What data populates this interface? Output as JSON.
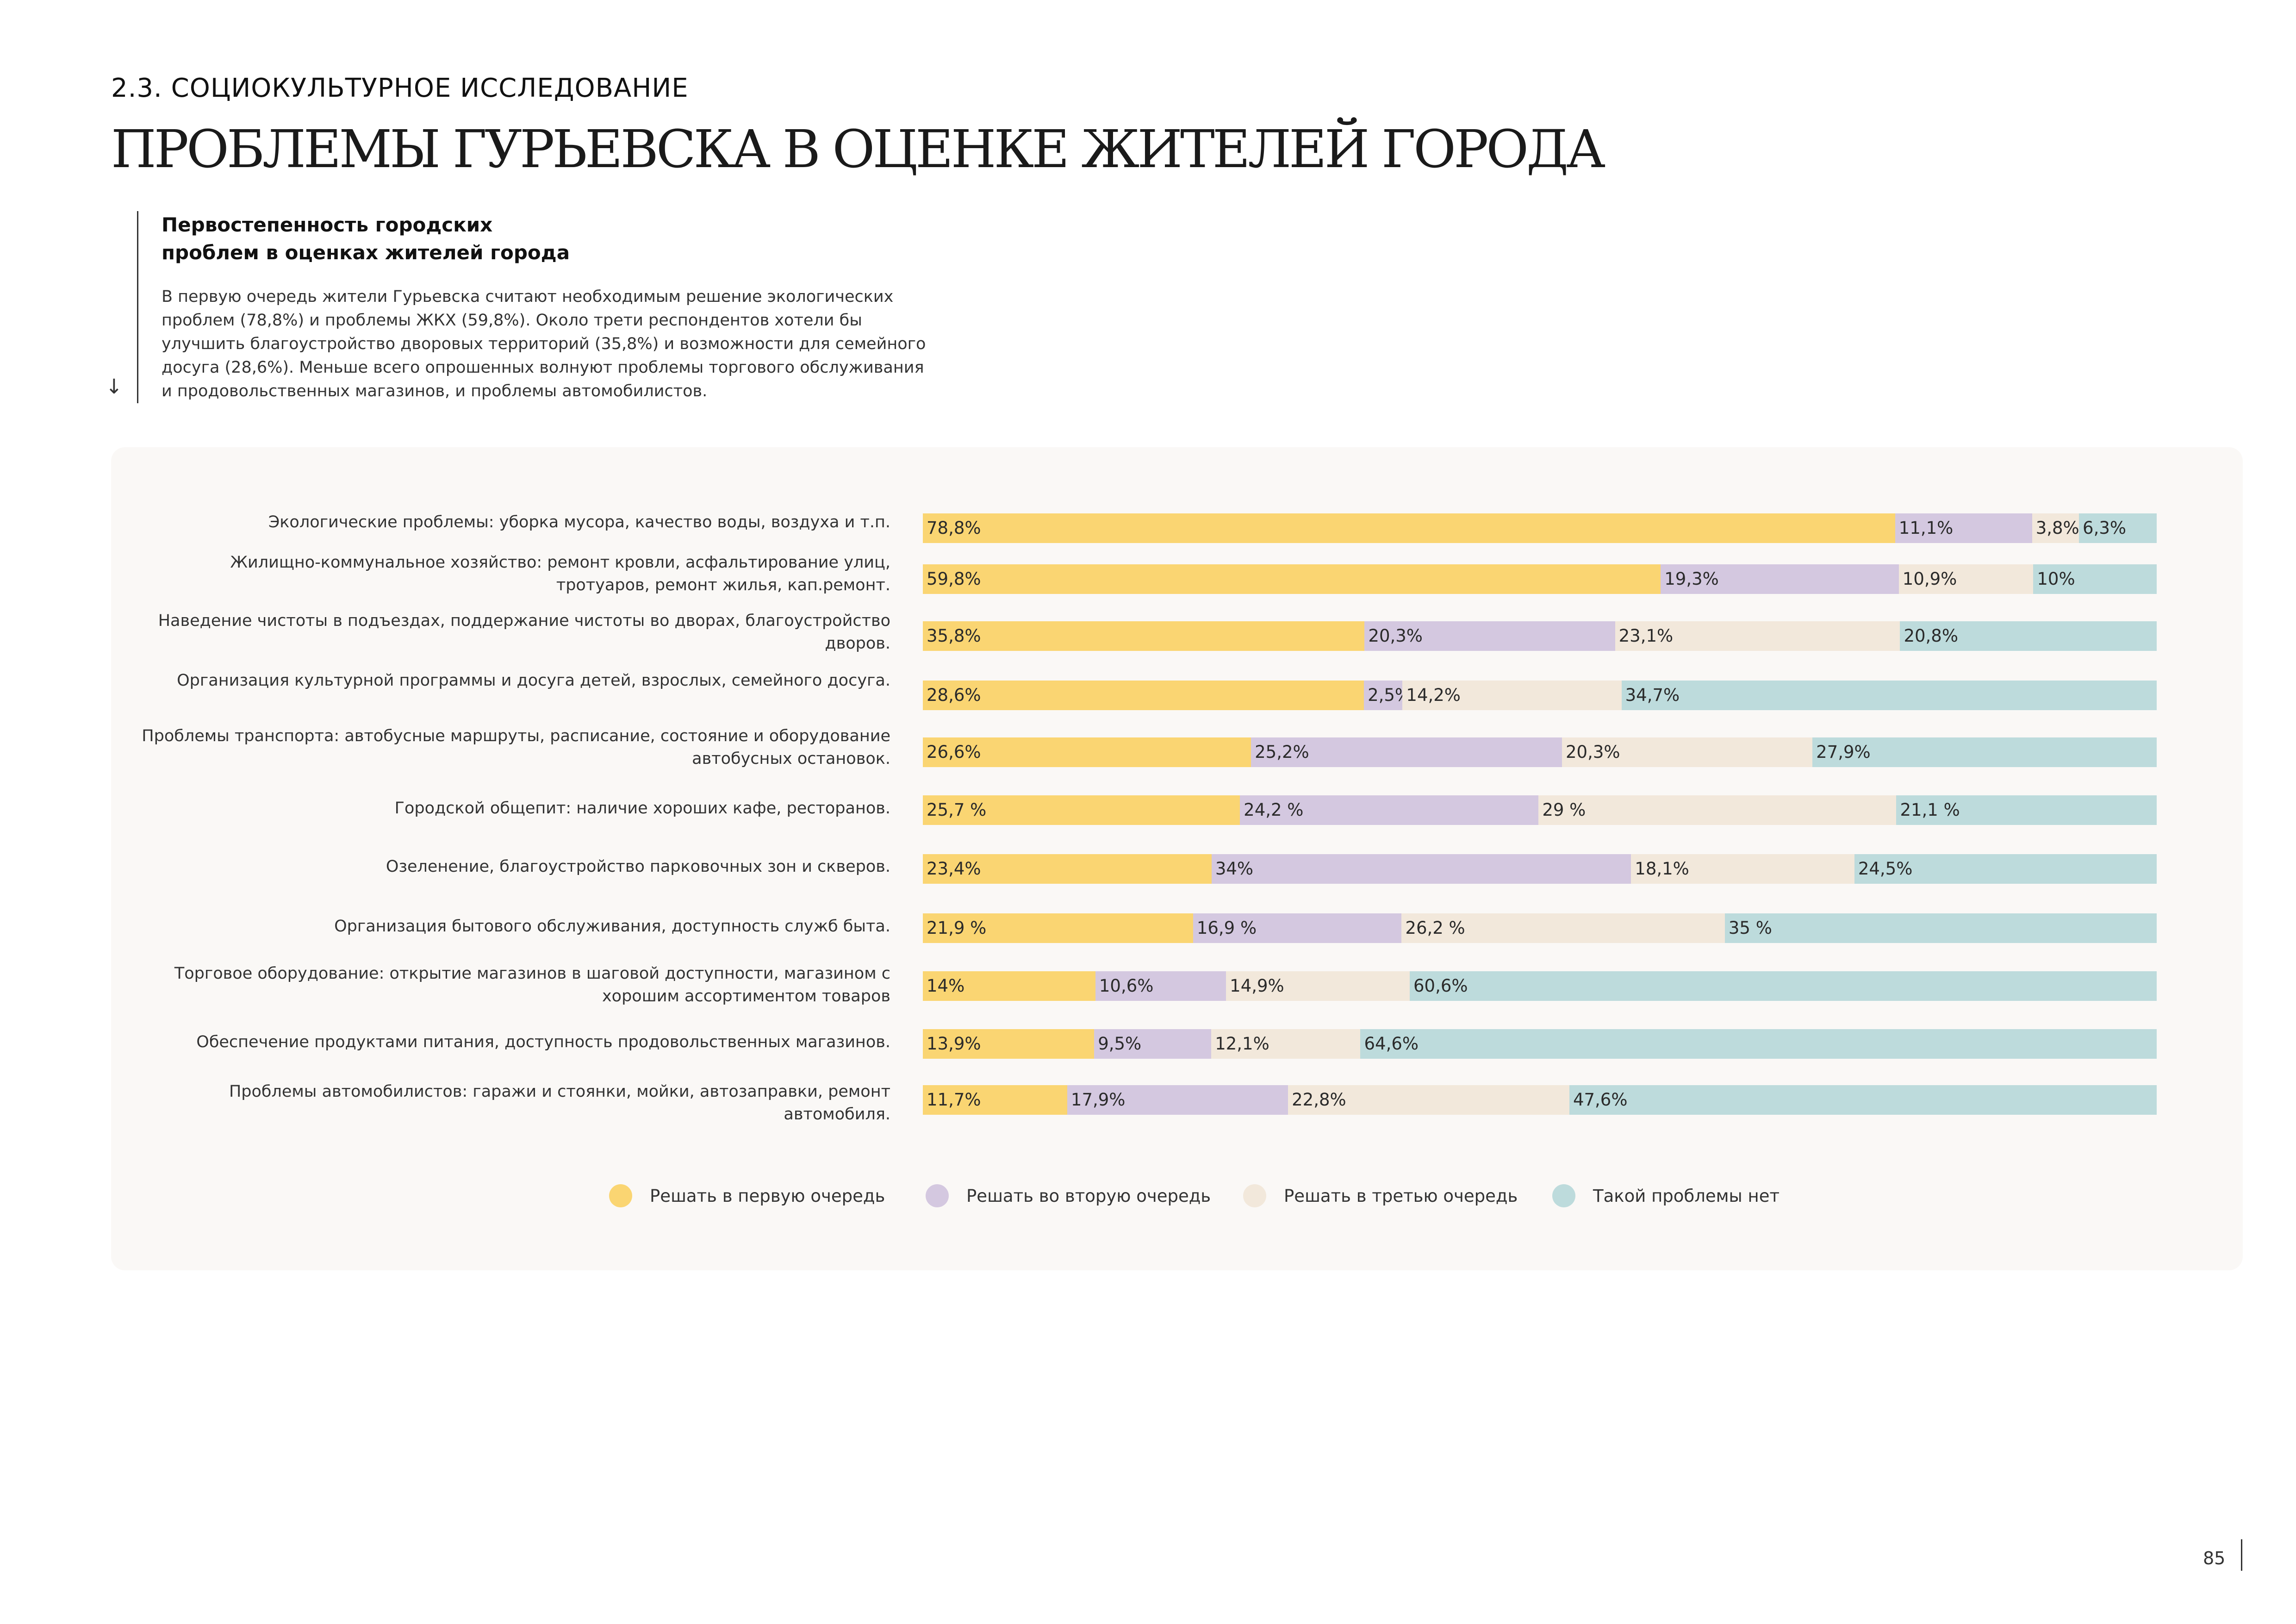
{
  "header": {
    "section_label": "2.3. СОЦИОКУЛЬТУРНОЕ ИССЛЕДОВАНИЕ",
    "title": "ПРОБЛЕМЫ ГУРЬЕВСКА В ОЦЕНКЕ ЖИТЕЛЕЙ ГОРОДА"
  },
  "intro": {
    "heading": "Первостепенность городских проблем в оценках жителей города",
    "text": "В первую очередь жители Гурьевска считают необходимым решение экологических проблем (78,8%) и проблемы ЖКХ (59,8%). Около трети респондентов хотели бы улучшить благоустройство дворовых территорий (35,8%) и возможности для семейного досуга (28,6%). Меньше всего опрошенных волнуют проблемы торгового обслуживания и продовольственных магазинов, и проблемы автомобилистов.",
    "arrow_icon": "↓"
  },
  "chart_data": {
    "type": "bar",
    "orientation": "horizontal",
    "stacked": true,
    "categories": [
      "Экологические проблемы: уборка мусора, качество воды, воздуха и т.п.",
      "Жилищно-коммунальное хозяйство: ремонт кровли, асфальтирование улиц, тротуаров, ремонт жилья, кап.ремонт.",
      "Наведение чистоты в подъездах, поддержание чистоты во дворах, благоустройство дворов.",
      "Организация  культурной программы и досуга детей, взрослых, семейного досуга.",
      "Проблемы транспорта: автобусные маршруты, расписание, состояние и оборудование автобусных остановок.",
      "Городской общепит: наличие хороших кафе, ресторанов.",
      "Озеленение, благоустройство парковочных зон и скверов.",
      "Организация бытового обслуживания, доступность служб быта.",
      "Торговое оборудование: открытие магазинов в шаговой доступности, магазином с хорошим ассортиментом товаров",
      "Обеспечение продуктами питания, доступность продовольственных магазинов.",
      "Проблемы автомобилистов: гаражи и стоянки, мойки, автозаправки, ремонт автомобиля."
    ],
    "series": [
      {
        "name": "Решать в первую очередь",
        "color": "#fad572",
        "values": [
          78.8,
          59.8,
          35.8,
          28.6,
          26.6,
          25.7,
          23.4,
          21.9,
          14,
          13.9,
          11.7
        ],
        "labels": [
          "78,8%",
          "59,8%",
          "35,8%",
          "28,6%",
          "26,6%",
          "25,7 %",
          "23,4%",
          "21,9 %",
          "14%",
          "13,9%",
          "11,7%"
        ]
      },
      {
        "name": "Решать во вторую очередь",
        "color": "#d4c8e0",
        "values": [
          11.1,
          19.3,
          20.3,
          2.5,
          25.2,
          24.2,
          34,
          16.9,
          10.6,
          9.5,
          17.9
        ],
        "labels": [
          "11,1%",
          "19,3%",
          "20,3%",
          "2,5%",
          "25,2%",
          "24,2 %",
          "34%",
          "16,9 %",
          "10,6%",
          "9,5%",
          "17,9%"
        ]
      },
      {
        "name": "Решать в третью очередь",
        "color": "#f2e8db",
        "values": [
          3.8,
          10.9,
          23.1,
          14.2,
          20.3,
          29,
          18.1,
          26.2,
          14.9,
          12.1,
          22.8
        ],
        "labels": [
          "3,8%",
          "10,9%",
          "23,1%",
          "14,2%",
          "20,3%",
          "29 %",
          "18,1%",
          "26,2 %",
          "14,9%",
          "12,1%",
          "22,8%"
        ]
      },
      {
        "name": "Такой проблемы нет",
        "color": "#bddbdc",
        "values": [
          6.3,
          10,
          20.8,
          34.7,
          27.9,
          21.1,
          24.5,
          35,
          60.6,
          64.6,
          47.6
        ],
        "labels": [
          "6,3%",
          "10%",
          "20,8%",
          "34,7%",
          "27,9%",
          "21,1 %",
          "24,5%",
          "35 %",
          "60,6%",
          "64,6%",
          "47,6%"
        ]
      }
    ],
    "legend_position": "bottom",
    "grid": false
  },
  "footer": {
    "page_number": "85"
  }
}
